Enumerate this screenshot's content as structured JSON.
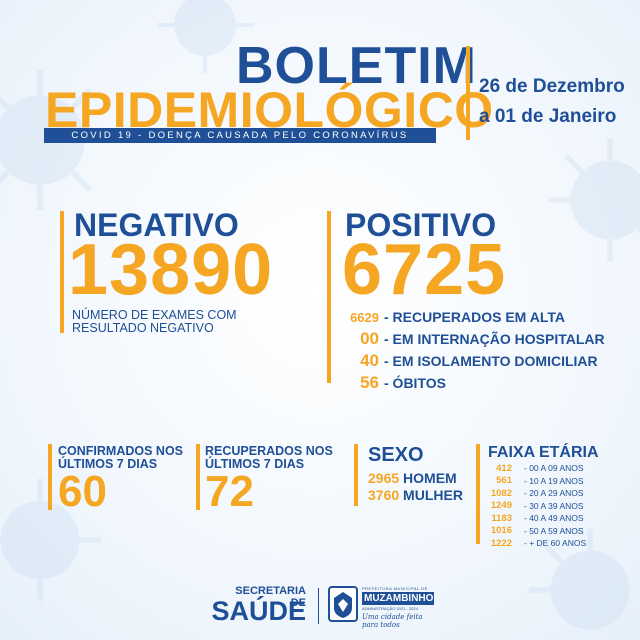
{
  "header": {
    "title_line1": "BOLETIM",
    "title_line2": "EPIDEMIOLÓGICO",
    "subtitle": "COVID 19 - DOENÇA CAUSADA PELO CORONAVÍRUS",
    "date_line1": "26 de Dezembro",
    "date_line2": "a 01 de Janeiro"
  },
  "negativo": {
    "title": "NEGATIVO",
    "value": "13890",
    "desc_line1": "NÚMERO DE EXAMES COM",
    "desc_line2": "RESULTADO NEGATIVO"
  },
  "positivo": {
    "title": "POSITIVO",
    "value": "6725",
    "items": [
      {
        "value": "6629",
        "label": "- RECUPERADOS EM ALTA"
      },
      {
        "value": "00",
        "label": "- EM INTERNAÇÃO HOSPITALAR"
      },
      {
        "value": "40",
        "label": "- EM ISOLAMENTO DOMICILIAR"
      },
      {
        "value": "56",
        "label": "- ÓBITOS"
      }
    ]
  },
  "confirmados": {
    "line1": "CONFIRMADOS NOS",
    "line2": "ÚLTIMOS 7 DIAS",
    "value": "60"
  },
  "recuperados": {
    "line1": "RECUPERADOS NOS",
    "line2": "ÚLTIMOS 7 DIAS",
    "value": "72"
  },
  "sexo": {
    "title": "SEXO",
    "rows": [
      {
        "value": "2965",
        "label": "HOMEM"
      },
      {
        "value": "3760",
        "label": "MULHER"
      }
    ]
  },
  "faixa": {
    "title": "FAIXA ETÁRIA",
    "rows": [
      {
        "value": "412",
        "label": "- 00 A 09 ANOS"
      },
      {
        "value": "561",
        "label": "- 10 A 19 ANOS"
      },
      {
        "value": "1082",
        "label": "- 20 A 29 ANOS"
      },
      {
        "value": "1249",
        "label": "- 30 A 39 ANOS"
      },
      {
        "value": "1183",
        "label": "- 40 A 49 ANOS"
      },
      {
        "value": "1016",
        "label": "- 50 A 59 ANOS"
      },
      {
        "value": "1222",
        "label": "- + DE 60 ANOS"
      }
    ]
  },
  "footer": {
    "sec_line1": "SECRETARIA DE",
    "sec_line2": "SAÚDE",
    "city_top": "PREFEITURA MUNICIPAL DE",
    "city_name": "MUZAMBINHO",
    "city_admin": "ADMINISTRAÇÃO 2021 - 2024",
    "city_slogan": "Uma cidade feita para todos"
  },
  "colors": {
    "blue": "#1f4f96",
    "orange": "#f5a623"
  }
}
